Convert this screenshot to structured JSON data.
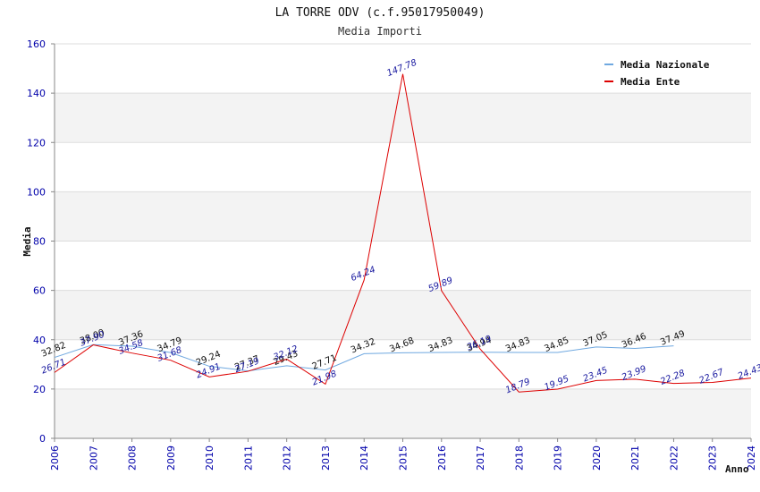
{
  "chart_data": {
    "type": "line",
    "title": "LA TORRE ODV (c.f.95017950049)",
    "subtitle": "Media Importi",
    "xlabel": "Anno",
    "ylabel": "Media",
    "ylim": [
      0,
      160
    ],
    "yticks": [
      0,
      20,
      40,
      60,
      80,
      100,
      120,
      140,
      160
    ],
    "x": [
      2006,
      2007,
      2008,
      2009,
      2010,
      2011,
      2012,
      2013,
      2014,
      2015,
      2016,
      2017,
      2018,
      2019,
      2020,
      2021,
      2022,
      2023,
      2024
    ],
    "legend_position": "top-right",
    "grid": true,
    "series": [
      {
        "name": "Media Nazionale",
        "color": "#6fa8e0",
        "values": [
          32.82,
          38.0,
          37.36,
          34.79,
          29.24,
          27.37,
          29.43,
          27.71,
          34.32,
          34.68,
          34.83,
          34.94,
          34.83,
          34.85,
          37.05,
          36.46,
          37.49,
          null,
          null
        ],
        "labels": [
          "32.82",
          "38.00",
          "37.36",
          "34.79",
          "29.24",
          "27.37",
          "29.43",
          "27.71",
          "34.32",
          "34.68",
          "34.83",
          "34.94",
          "34.83",
          "34.85",
          "37.05",
          "36.46",
          "37.49",
          "",
          ""
        ]
      },
      {
        "name": "Media Ente",
        "color": "#dd0000",
        "values": [
          26.71,
          37.9,
          34.58,
          31.68,
          24.91,
          27.19,
          32.12,
          21.98,
          64.24,
          147.78,
          59.89,
          36.19,
          18.79,
          19.95,
          23.45,
          23.99,
          22.28,
          22.67,
          24.43
        ],
        "labels": [
          "26.71",
          "37.90",
          "34.58",
          "31.68",
          "24.91",
          "27.19",
          "32.12",
          "21.98",
          "64.24",
          "147.78",
          "59.89",
          "36.19",
          "18.79",
          "19.95",
          "23.45",
          "23.99",
          "22.28",
          "22.67",
          "24.43"
        ]
      }
    ]
  }
}
